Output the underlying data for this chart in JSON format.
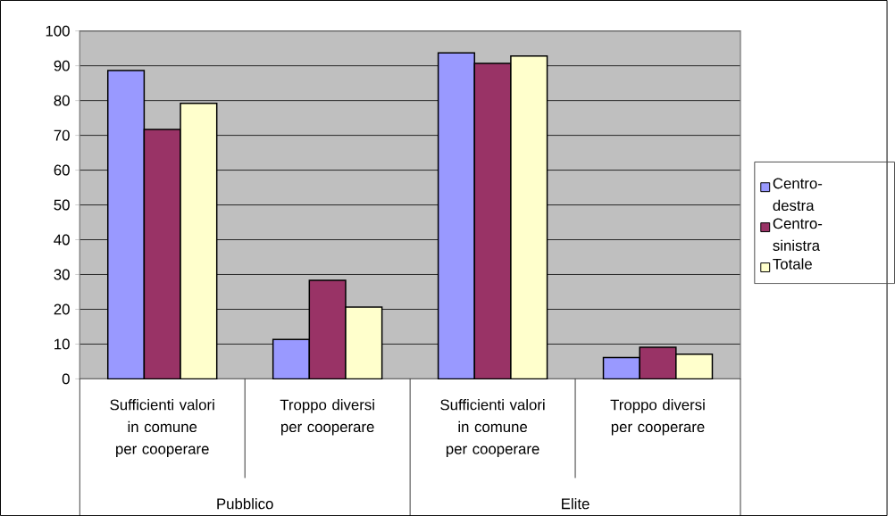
{
  "chart_data": {
    "type": "bar",
    "categories": [
      "Sufficienti valori in comune per cooperare",
      "Troppo diversi per cooperare",
      "Sufficienti valori in comune per cooperare",
      "Troppo diversi per cooperare"
    ],
    "series": [
      {
        "name": "Centro-destra",
        "color": "#9999ff",
        "values": [
          88.6,
          11.3,
          93.7,
          6.1
        ]
      },
      {
        "name": "Centro-sinistra",
        "color": "#993366",
        "values": [
          71.7,
          28.3,
          90.7,
          9.1
        ]
      },
      {
        "name": "Totale",
        "color": "#ffffcc",
        "values": [
          79.2,
          20.6,
          92.8,
          7.1
        ]
      }
    ],
    "annotations": [
      "Pubblico",
      "Elite"
    ],
    "ylim": [
      0,
      100
    ],
    "yticks": [
      0,
      10,
      20,
      30,
      40,
      50,
      60,
      70,
      80,
      90,
      100
    ],
    "grid": "y",
    "legend": "right"
  }
}
